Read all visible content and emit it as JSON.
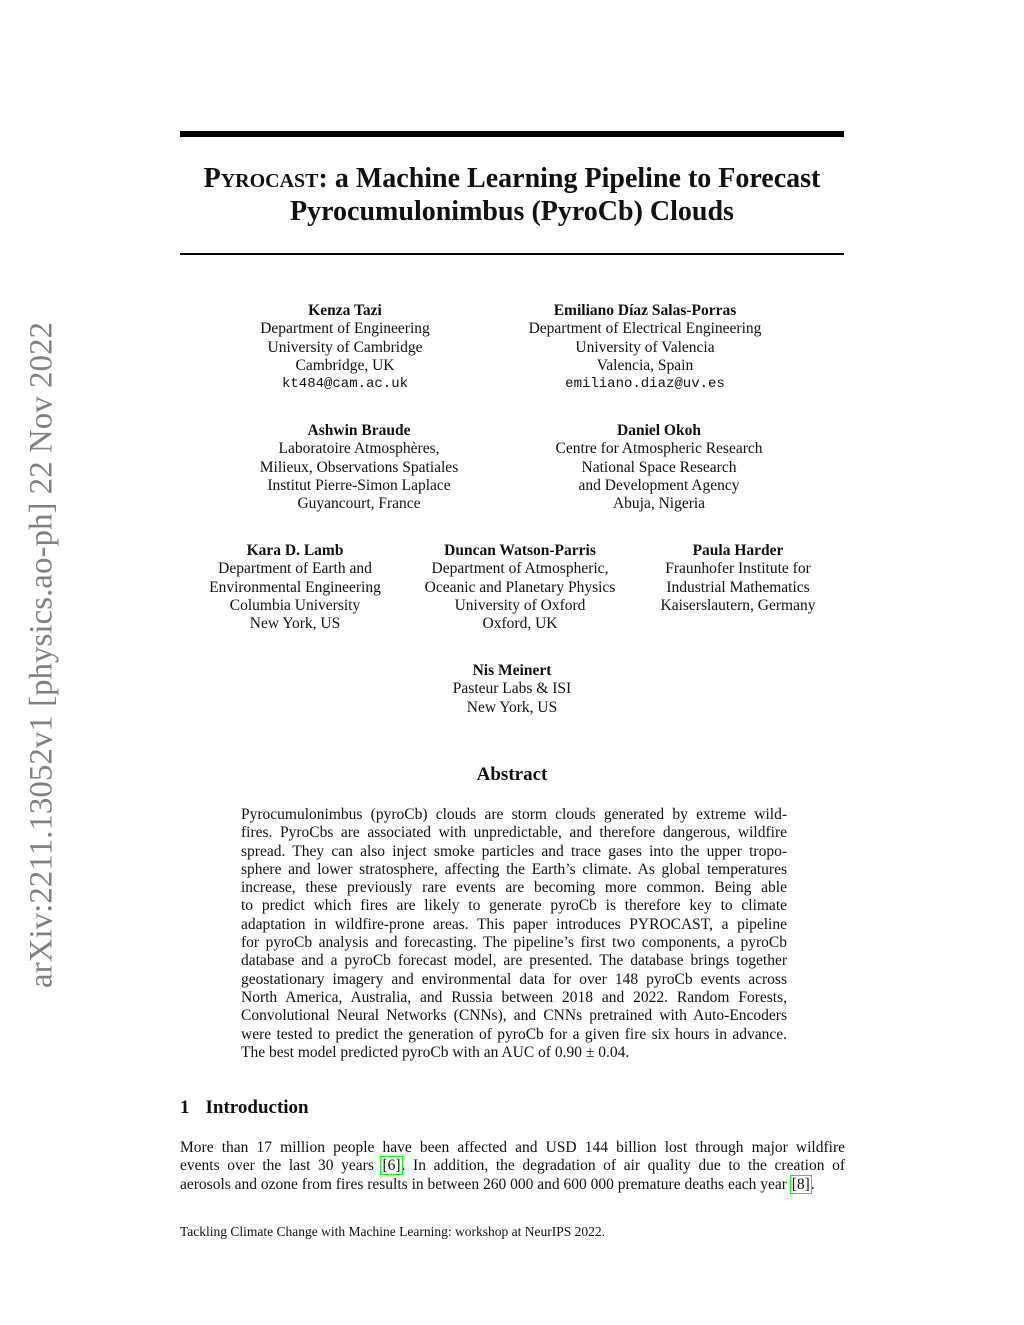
{
  "arxiv_stamp": "arXiv:2211.13052v1  [physics.ao-ph]  22 Nov 2022",
  "title": {
    "name_sc": "Pyrocast",
    "line1_rest": ": a Machine Learning Pipeline to Forecast",
    "line2": "Pyrocumulonimbus (PyroCb) Clouds"
  },
  "authors": [
    {
      "name": "Kenza Tazi",
      "lines": [
        "Department of Engineering",
        "University of Cambridge",
        "Cambridge, UK"
      ],
      "email": "kt484@cam.ac.uk"
    },
    {
      "name": "Emiliano Díaz Salas-Porras",
      "lines": [
        "Department of Electrical Engineering",
        "University of Valencia",
        "Valencia, Spain"
      ],
      "email": "emiliano.diaz@uv.es"
    },
    {
      "name": "Ashwin Braude",
      "lines": [
        "Laboratoire Atmosphères,",
        "Milieux, Observations Spatiales",
        "Institut Pierre-Simon Laplace",
        "Guyancourt, France"
      ]
    },
    {
      "name": "Daniel Okoh",
      "lines": [
        "Centre for Atmospheric Research",
        "National Space Research",
        "and Development Agency",
        "Abuja, Nigeria"
      ]
    },
    {
      "name": "Kara D. Lamb",
      "lines": [
        "Department of Earth and",
        "Environmental Engineering",
        "Columbia University",
        "New York, US"
      ]
    },
    {
      "name": "Duncan Watson-Parris",
      "lines": [
        "Department of Atmospheric,",
        "Oceanic and Planetary Physics",
        "University of Oxford",
        "Oxford, UK"
      ]
    },
    {
      "name": "Paula Harder",
      "lines": [
        "Fraunhofer Institute for",
        "Industrial Mathematics",
        "Kaiserslautern, Germany"
      ]
    },
    {
      "name": "Nis Meinert",
      "lines": [
        "Pasteur Labs & ISI",
        "New York, US"
      ]
    }
  ],
  "abstract": {
    "heading": "Abstract",
    "lines": [
      "Pyrocumulonimbus (pyroCb) clouds are storm clouds generated by extreme wild-",
      "fires. PyroCbs are associated with unpredictable, and therefore dangerous, wildfire",
      "spread. They can also inject smoke particles and trace gases into the upper tropo-",
      "sphere and lower stratosphere, affecting the Earth’s climate. As global temperatures",
      "increase, these previously rare events are becoming more common. Being able",
      "to predict which fires are likely to generate pyroCb is therefore key to climate",
      "adaptation in wildfire-prone areas. This paper introduces PYROCAST, a pipeline",
      "for pyroCb analysis and forecasting. The pipeline’s first two components, a pyroCb",
      "database and a pyroCb forecast model, are presented. The database brings together",
      "geostationary imagery and environmental data for over 148 pyroCb events across",
      "North America, Australia, and Russia between 2018 and 2022. Random Forests,",
      "Convolutional Neural Networks (CNNs), and CNNs pretrained with Auto-Encoders",
      "were tested to predict the generation of pyroCb for a given fire six hours in advance.",
      "The best model predicted pyroCb with an AUC of 0.90 ± 0.04."
    ]
  },
  "intro": {
    "number": "1",
    "heading": "Introduction",
    "line1": "More than 17 million people have been affected and USD 144 billion lost through major wildfire",
    "line2_pre": "events over the last 30 years ",
    "cite1": "[6]",
    "line2_post": ". In addition, the degradation of air quality due to the creation of",
    "line3_pre": "aerosols and ozone from fires results in between 260 000 and 600 000 premature deaths each year ",
    "cite2": "[8]",
    "line3_post": "."
  },
  "footnote": "Tackling Climate Change with Machine Learning: workshop at NeurIPS 2022."
}
